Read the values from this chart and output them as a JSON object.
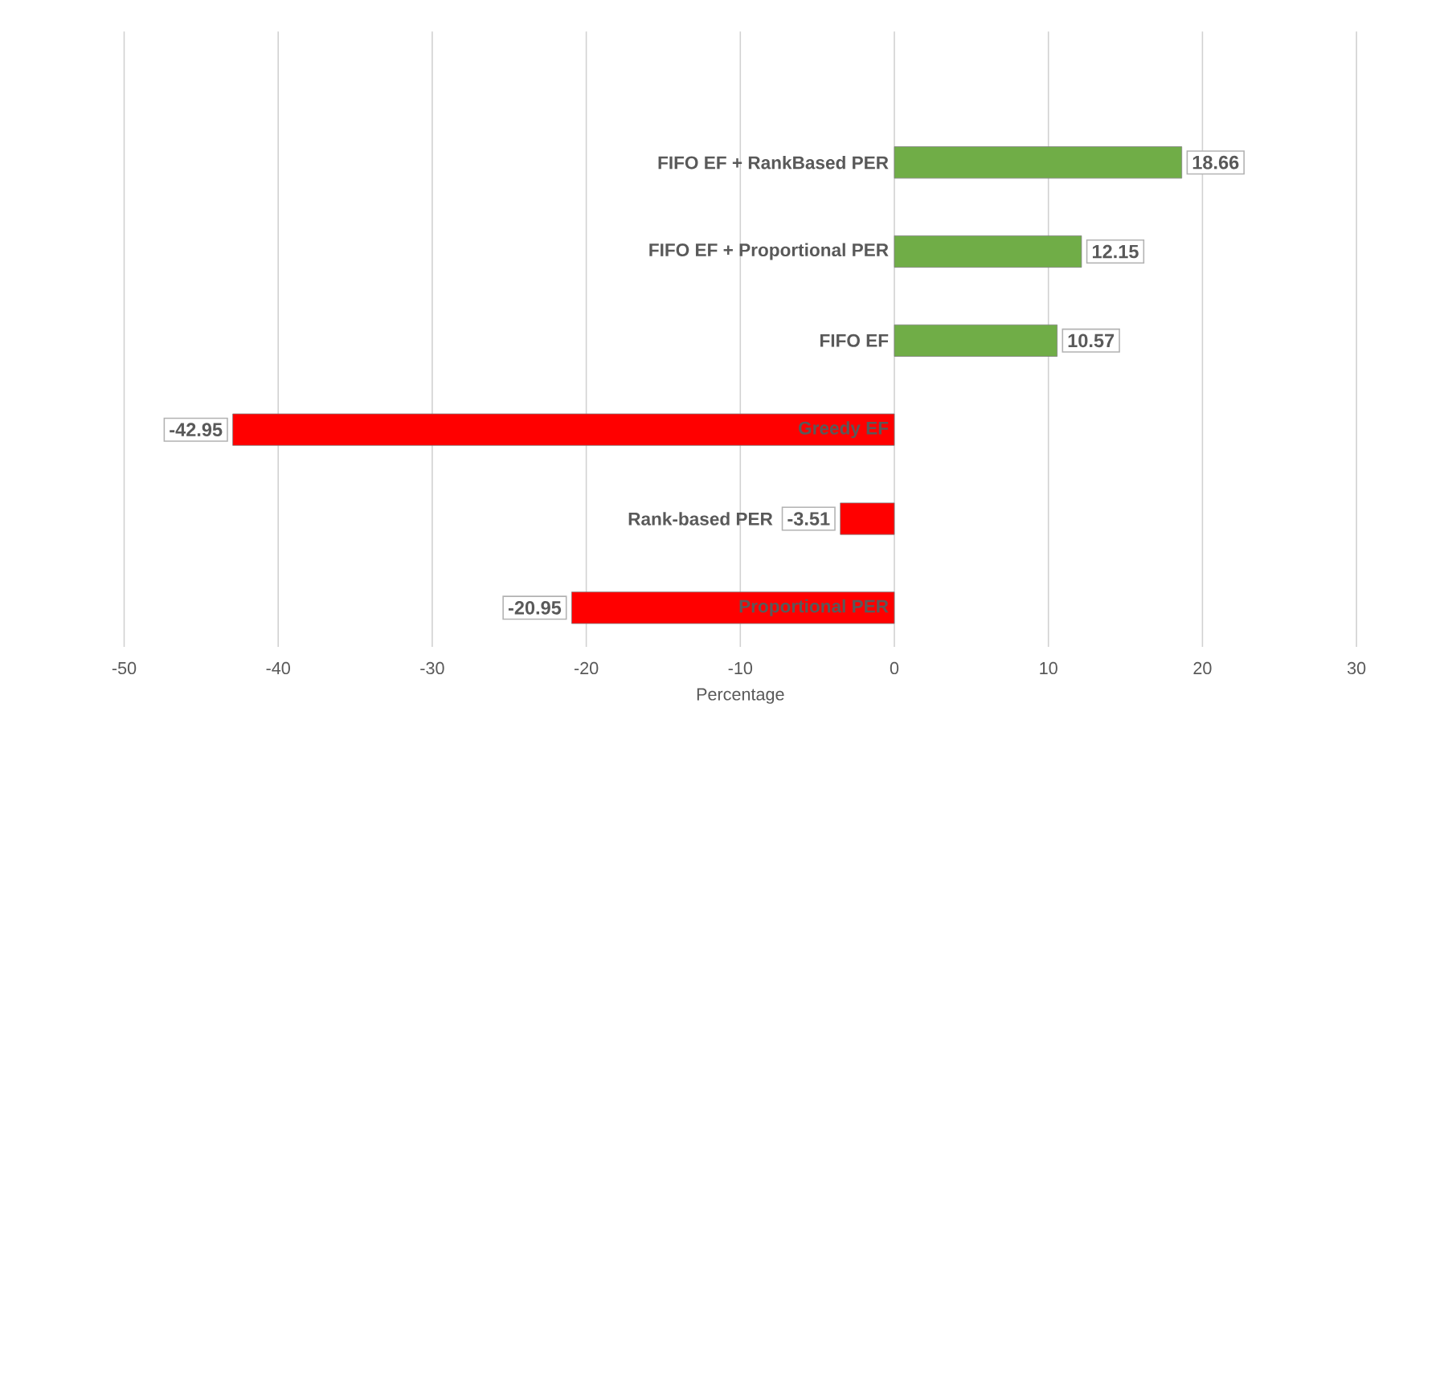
{
  "chart_data": {
    "type": "bar",
    "orientation": "horizontal",
    "xlabel": "Percentage",
    "categories": [
      "FIFO EF + RankBased PER",
      "FIFO EF + Proportional PER",
      "FIFO EF",
      "Greedy EF",
      "Rank-based PER",
      "Proportional PER"
    ],
    "values": [
      18.66,
      12.15,
      10.57,
      -42.95,
      -3.51,
      -20.95
    ],
    "colors": [
      "#70ad47",
      "#70ad47",
      "#70ad47",
      "#ff0000",
      "#ff0000",
      "#ff0000"
    ],
    "xlim": [
      -50,
      30
    ],
    "xticks": [
      -50,
      -40,
      -30,
      -20,
      -10,
      0,
      10,
      20,
      30
    ],
    "grid": "x",
    "data_labels": true
  }
}
